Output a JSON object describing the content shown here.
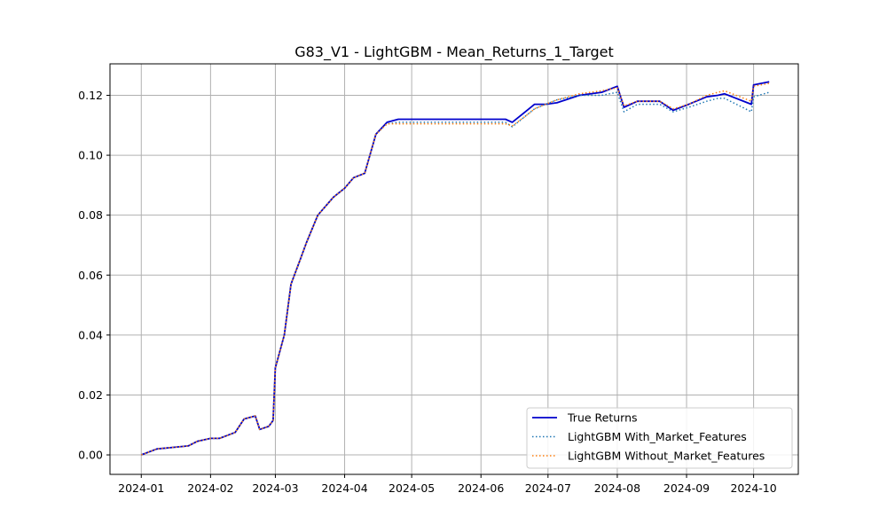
{
  "chart_data": {
    "type": "line",
    "title": "G83_V1 - LightGBM - Mean_Returns_1_Target",
    "xlabel": "",
    "ylabel": "",
    "x_ticks": [
      "2024-01",
      "2024-02",
      "2024-03",
      "2024-04",
      "2024-05",
      "2024-06",
      "2024-07",
      "2024-08",
      "2024-09",
      "2024-10"
    ],
    "y_ticks": [
      "0.00",
      "0.02",
      "0.04",
      "0.06",
      "0.08",
      "0.10",
      "0.12"
    ],
    "xlim": [
      "2023-12-18",
      "2024-10-21"
    ],
    "ylim": [
      -0.0065,
      0.1305
    ],
    "grid": true,
    "legend_position": "lower-right",
    "x": [
      "2024-01-01",
      "2024-01-08",
      "2024-01-15",
      "2024-01-22",
      "2024-01-26",
      "2024-02-01",
      "2024-02-05",
      "2024-02-12",
      "2024-02-16",
      "2024-02-21",
      "2024-02-23",
      "2024-02-27",
      "2024-02-29",
      "2024-03-01",
      "2024-03-05",
      "2024-03-08",
      "2024-03-12",
      "2024-03-15",
      "2024-03-20",
      "2024-03-27",
      "2024-04-01",
      "2024-04-05",
      "2024-04-10",
      "2024-04-15",
      "2024-04-20",
      "2024-04-25",
      "2024-05-10",
      "2024-06-01",
      "2024-06-12",
      "2024-06-15",
      "2024-06-20",
      "2024-06-25",
      "2024-06-30",
      "2024-07-05",
      "2024-07-15",
      "2024-07-25",
      "2024-08-01",
      "2024-08-04",
      "2024-08-10",
      "2024-08-20",
      "2024-08-26",
      "2024-09-02",
      "2024-09-10",
      "2024-09-15",
      "2024-09-18",
      "2024-09-30",
      "2024-10-01",
      "2024-10-08"
    ],
    "series": [
      {
        "name": "True Returns",
        "color": "#0000cc",
        "style": "solid",
        "values": [
          0.0,
          0.002,
          0.0025,
          0.003,
          0.0045,
          0.0055,
          0.0055,
          0.0075,
          0.012,
          0.013,
          0.0085,
          0.0095,
          0.0115,
          0.029,
          0.04,
          0.057,
          0.065,
          0.071,
          0.08,
          0.086,
          0.089,
          0.0925,
          0.094,
          0.107,
          0.111,
          0.112,
          0.112,
          0.112,
          0.112,
          0.111,
          0.114,
          0.117,
          0.117,
          0.1175,
          0.12,
          0.121,
          0.123,
          0.116,
          0.118,
          0.118,
          0.115,
          0.117,
          0.1195,
          0.12,
          0.1205,
          0.117,
          0.1235,
          0.1245
        ]
      },
      {
        "name": "LightGBM With_Market_Features",
        "color": "#1f77b4",
        "style": "dotted",
        "values": [
          0.0,
          0.002,
          0.0025,
          0.003,
          0.0045,
          0.0055,
          0.0055,
          0.0075,
          0.012,
          0.013,
          0.0085,
          0.0095,
          0.0115,
          0.029,
          0.04,
          0.057,
          0.065,
          0.071,
          0.08,
          0.086,
          0.089,
          0.0925,
          0.094,
          0.107,
          0.1105,
          0.111,
          0.111,
          0.111,
          0.111,
          0.1095,
          0.1125,
          0.1155,
          0.117,
          0.1185,
          0.12,
          0.12,
          0.121,
          0.1145,
          0.117,
          0.117,
          0.1145,
          0.116,
          0.118,
          0.119,
          0.119,
          0.1145,
          0.1195,
          0.121
        ]
      },
      {
        "name": "LightGBM Without_Market_Features",
        "color": "#ff7f0e",
        "style": "dotted",
        "values": [
          0.0,
          0.002,
          0.0025,
          0.003,
          0.0045,
          0.0055,
          0.0055,
          0.0075,
          0.012,
          0.013,
          0.0085,
          0.0095,
          0.0115,
          0.029,
          0.04,
          0.057,
          0.065,
          0.071,
          0.08,
          0.086,
          0.089,
          0.0925,
          0.094,
          0.107,
          0.1105,
          0.1105,
          0.1105,
          0.1105,
          0.1105,
          0.1098,
          0.1125,
          0.1155,
          0.117,
          0.1185,
          0.1205,
          0.1215,
          0.1225,
          0.1165,
          0.118,
          0.118,
          0.1155,
          0.117,
          0.12,
          0.121,
          0.1215,
          0.118,
          0.123,
          0.124
        ]
      }
    ]
  }
}
